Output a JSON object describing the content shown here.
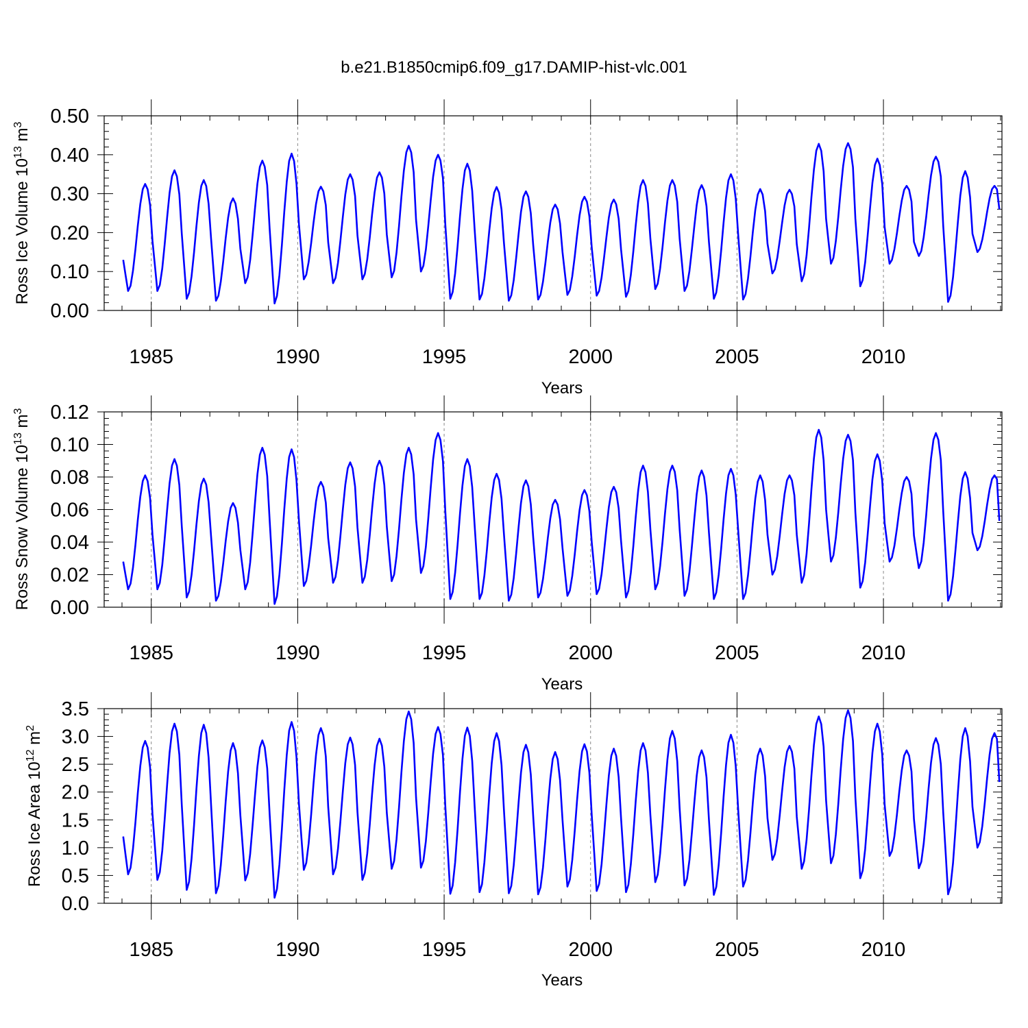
{
  "title": "b.e21.B1850cmip6.f09_g17.DAMIP-hist-vlc.001",
  "series_color": "#0000ff",
  "chart_data": [
    {
      "type": "line",
      "ylabel": "Ross Ice Volume 10",
      "ylabel_exp": "13",
      "ylabel_unit": " m",
      "ylabel_unit_exp": "3",
      "xlabel": "Years",
      "xlim": [
        1984.0,
        2014.0
      ],
      "ylim": [
        0.0,
        0.5
      ],
      "yticks": [
        "0.00",
        "0.10",
        "0.20",
        "0.30",
        "0.40",
        "0.50"
      ],
      "ytick_values": [
        0.0,
        0.1,
        0.2,
        0.3,
        0.4,
        0.5
      ],
      "xticks": [
        "1985",
        "1990",
        "1995",
        "2000",
        "2005",
        "2010"
      ],
      "xtick_values": [
        1985,
        1990,
        1995,
        2000,
        2005,
        2010
      ],
      "dashed_grid_x": [
        1985,
        1990,
        1995,
        2000,
        2005,
        2010
      ],
      "annual_min": [
        0.05,
        0.05,
        0.03,
        0.025,
        0.07,
        0.018,
        0.08,
        0.07,
        0.08,
        0.085,
        0.1,
        0.03,
        0.028,
        0.025,
        0.028,
        0.04,
        0.038,
        0.035,
        0.055,
        0.05,
        0.03,
        0.028,
        0.095,
        0.075,
        0.12,
        0.062,
        0.12,
        0.14,
        0.022,
        0.15
      ],
      "annual_max": [
        0.325,
        0.36,
        0.335,
        0.288,
        0.385,
        0.403,
        0.318,
        0.35,
        0.355,
        0.423,
        0.4,
        0.377,
        0.317,
        0.306,
        0.272,
        0.292,
        0.285,
        0.335,
        0.335,
        0.322,
        0.35,
        0.312,
        0.31,
        0.428,
        0.43,
        0.39,
        0.32,
        0.395,
        0.358,
        0.32
      ],
      "start_value": 0.13,
      "end_value": 0.26
    },
    {
      "type": "line",
      "ylabel": "Ross Snow Volume 10",
      "ylabel_exp": "13",
      "ylabel_unit": " m",
      "ylabel_unit_exp": "3",
      "xlabel": "Years",
      "xlim": [
        1984.0,
        2014.0
      ],
      "ylim": [
        0.0,
        0.12
      ],
      "yticks": [
        "0.00",
        "0.02",
        "0.04",
        "0.06",
        "0.08",
        "0.10",
        "0.12"
      ],
      "ytick_values": [
        0.0,
        0.02,
        0.04,
        0.06,
        0.08,
        0.1,
        0.12
      ],
      "xticks": [
        "1985",
        "1990",
        "1995",
        "2000",
        "2005",
        "2010"
      ],
      "xtick_values": [
        1985,
        1990,
        1995,
        2000,
        2005,
        2010
      ],
      "dashed_grid_x": [
        1985,
        1990,
        1995,
        2000,
        2005,
        2010
      ],
      "annual_min": [
        0.011,
        0.011,
        0.006,
        0.004,
        0.011,
        0.002,
        0.013,
        0.015,
        0.015,
        0.016,
        0.021,
        0.005,
        0.005,
        0.004,
        0.006,
        0.007,
        0.008,
        0.006,
        0.011,
        0.007,
        0.005,
        0.005,
        0.02,
        0.015,
        0.028,
        0.012,
        0.028,
        0.024,
        0.004,
        0.035
      ],
      "annual_max": [
        0.081,
        0.091,
        0.079,
        0.064,
        0.098,
        0.097,
        0.077,
        0.089,
        0.09,
        0.098,
        0.107,
        0.091,
        0.082,
        0.078,
        0.066,
        0.072,
        0.074,
        0.087,
        0.087,
        0.084,
        0.085,
        0.081,
        0.081,
        0.109,
        0.106,
        0.094,
        0.08,
        0.107,
        0.083,
        0.081
      ],
      "start_value": 0.028,
      "end_value": 0.053
    },
    {
      "type": "line",
      "ylabel": "Ross Ice Area 10",
      "ylabel_exp": "12",
      "ylabel_unit": " m",
      "ylabel_unit_exp": "2",
      "xlabel": "Years",
      "xlim": [
        1984.0,
        2014.0
      ],
      "ylim": [
        0.0,
        3.5
      ],
      "yticks": [
        "0.0",
        "0.5",
        "1.0",
        "1.5",
        "2.0",
        "2.5",
        "3.0",
        "3.5"
      ],
      "ytick_values": [
        0.0,
        0.5,
        1.0,
        1.5,
        2.0,
        2.5,
        3.0,
        3.5
      ],
      "xticks": [
        "1985",
        "1990",
        "1995",
        "2000",
        "2005",
        "2010"
      ],
      "xtick_values": [
        1985,
        1990,
        1995,
        2000,
        2005,
        2010
      ],
      "dashed_grid_x": [
        1985,
        1990,
        1995,
        2000,
        2005,
        2010
      ],
      "annual_min": [
        0.52,
        0.42,
        0.24,
        0.18,
        0.41,
        0.1,
        0.6,
        0.52,
        0.42,
        0.62,
        0.64,
        0.17,
        0.2,
        0.18,
        0.16,
        0.3,
        0.22,
        0.2,
        0.38,
        0.32,
        0.15,
        0.3,
        0.78,
        0.62,
        0.72,
        0.45,
        0.85,
        0.63,
        0.16,
        1.0
      ],
      "annual_max": [
        2.92,
        3.23,
        3.21,
        2.88,
        2.93,
        3.26,
        3.15,
        2.98,
        2.96,
        3.45,
        3.17,
        3.16,
        3.06,
        2.85,
        2.72,
        2.86,
        2.78,
        2.88,
        3.1,
        2.75,
        3.03,
        2.78,
        2.83,
        3.36,
        3.47,
        3.23,
        2.75,
        2.97,
        3.15,
        3.06
      ],
      "start_value": 1.2,
      "end_value": 2.18
    }
  ]
}
